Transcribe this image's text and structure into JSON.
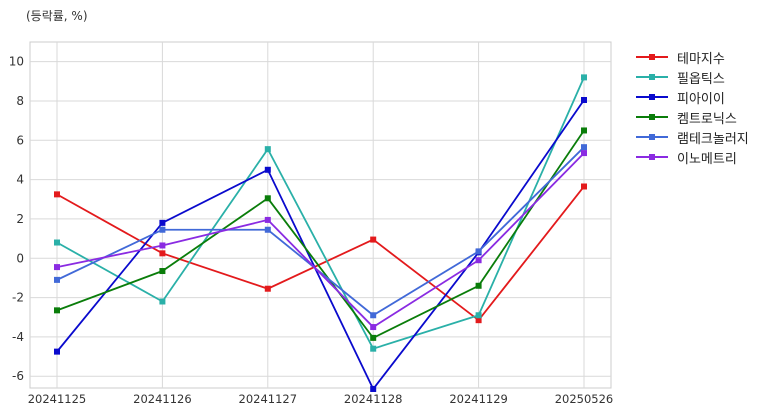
{
  "chart_data": {
    "type": "line",
    "unit_label": "(등락률, %)",
    "categories": [
      "20241125",
      "20241126",
      "20241127",
      "20241128",
      "20241129",
      "20250526"
    ],
    "ylim": [
      -6.6,
      11
    ],
    "yticks": [
      -6,
      -4,
      -2,
      0,
      2,
      4,
      6,
      8,
      10
    ],
    "grid": true,
    "legend_position": "outside-right",
    "series": [
      {
        "name": "테마지수",
        "color": "#e31a1c",
        "values": [
          3.25,
          0.25,
          -1.55,
          0.95,
          -3.15,
          3.65
        ]
      },
      {
        "name": "필옵틱스",
        "color": "#2ab0a8",
        "values": [
          0.8,
          -2.2,
          5.55,
          -4.6,
          -2.9,
          9.2
        ]
      },
      {
        "name": "피아이이",
        "color": "#0a0acd",
        "values": [
          -4.75,
          1.8,
          4.5,
          -6.65,
          0.3,
          8.05
        ]
      },
      {
        "name": "켐트로닉스",
        "color": "#0a7d0a",
        "values": [
          -2.65,
          -0.65,
          3.05,
          -4.05,
          -1.4,
          6.5
        ]
      },
      {
        "name": "램테크놀러지",
        "color": "#4169d8",
        "values": [
          -1.1,
          1.45,
          1.45,
          -2.9,
          0.35,
          5.65
        ]
      },
      {
        "name": "이노메트리",
        "color": "#8a2be2",
        "values": [
          -0.45,
          0.65,
          1.95,
          -3.5,
          -0.1,
          5.35
        ]
      }
    ]
  }
}
